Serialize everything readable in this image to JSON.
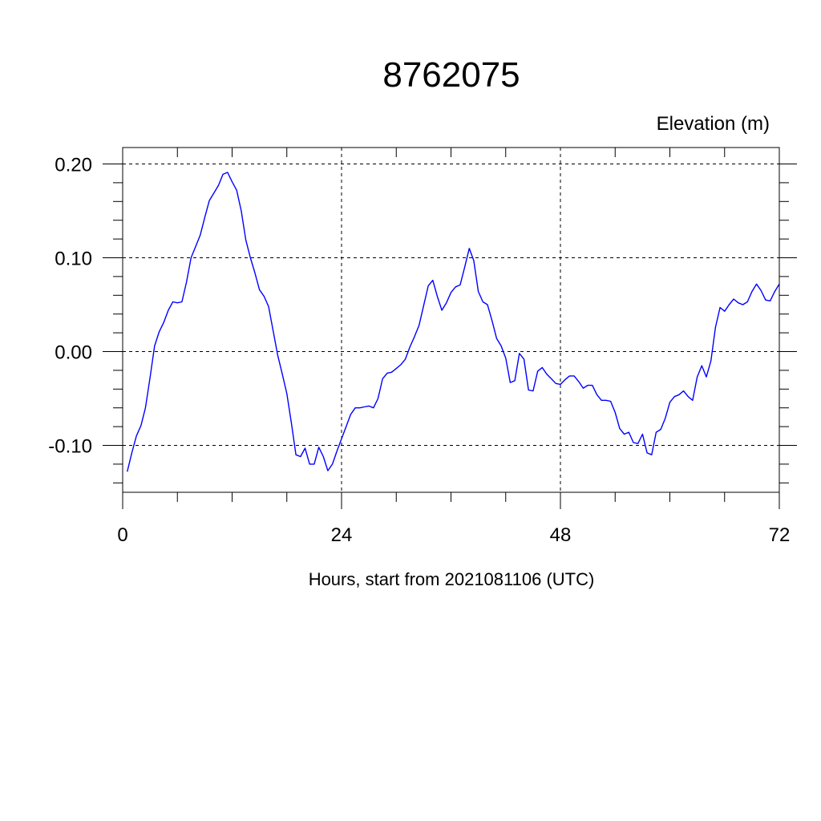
{
  "chart_data": {
    "type": "line",
    "title": "8762075",
    "ylabel": "Elevation (m)",
    "xlabel": "Hours, start from 2021081106 (UTC)",
    "xlim": [
      0,
      72
    ],
    "ylim": [
      -0.15,
      0.2
    ],
    "xticks": [
      0,
      24,
      48,
      72
    ],
    "xtick_labels": [
      "0",
      "24",
      "48",
      "72"
    ],
    "yticks": [
      -0.1,
      0.0,
      0.1,
      0.2
    ],
    "ytick_labels": [
      "-0.10",
      "0.00",
      "0.10",
      "0.20"
    ],
    "grid": true,
    "line_color": "#0000ff",
    "series": [
      {
        "x": [
          0.5,
          1.0,
          1.5,
          2.0,
          2.5,
          3.0,
          3.5,
          4.0,
          4.5,
          5.0,
          5.5,
          6.0,
          6.5,
          7.0,
          7.5,
          8.0,
          8.5,
          9.0,
          9.5,
          10.0,
          10.5,
          11.0,
          11.5,
          12.0,
          12.5,
          13.0,
          13.5,
          14.0,
          14.5,
          15.0,
          15.5,
          16.0,
          16.5,
          17.0,
          17.5,
          18.0,
          18.5,
          19.0,
          19.5,
          20.0,
          20.5,
          21.0,
          21.5,
          22.0,
          22.5,
          23.0,
          23.5,
          24.0,
          24.5,
          25.0,
          25.5,
          26.0,
          26.5,
          27.0,
          27.5,
          28.0,
          28.5,
          29.0,
          29.5,
          30.0,
          30.5,
          31.0,
          31.5,
          32.0,
          32.5,
          33.0,
          33.5,
          34.0,
          34.5,
          35.0,
          35.5,
          36.0,
          36.5,
          37.0,
          37.5,
          38.0,
          38.5,
          39.0,
          39.5,
          40.0,
          40.5,
          41.0,
          41.5,
          42.0,
          42.5,
          43.0,
          43.5,
          44.0,
          44.5,
          45.0,
          45.5,
          46.0,
          46.5,
          47.0,
          47.5,
          48.0,
          48.5,
          49.0,
          49.5,
          50.0,
          50.5,
          51.0,
          51.5,
          52.0,
          52.5,
          53.0,
          53.5,
          54.0,
          54.5,
          55.0,
          55.5,
          56.0,
          56.5,
          57.0,
          57.5,
          58.0,
          58.5,
          59.0,
          59.5,
          60.0,
          60.5,
          61.0,
          61.5,
          62.0,
          62.5,
          63.0,
          63.5,
          64.0,
          64.5,
          65.0,
          65.5,
          66.0,
          66.5,
          67.0,
          67.5,
          68.0,
          68.5,
          69.0,
          69.5,
          70.0,
          70.5,
          71.0,
          71.5,
          72.0
        ],
        "values": [
          -0.128,
          -0.108,
          -0.09,
          -0.079,
          -0.06,
          -0.028,
          0.006,
          0.021,
          0.031,
          0.044,
          0.053,
          0.052,
          0.053,
          0.074,
          0.1,
          0.112,
          0.124,
          0.143,
          0.161,
          0.169,
          0.177,
          0.189,
          0.191,
          0.181,
          0.172,
          0.15,
          0.119,
          0.1,
          0.084,
          0.066,
          0.059,
          0.048,
          0.022,
          -0.004,
          -0.024,
          -0.045,
          -0.076,
          -0.11,
          -0.112,
          -0.103,
          -0.12,
          -0.12,
          -0.102,
          -0.112,
          -0.127,
          -0.12,
          -0.106,
          -0.093,
          -0.08,
          -0.067,
          -0.06,
          -0.06,
          -0.059,
          -0.058,
          -0.06,
          -0.05,
          -0.029,
          -0.023,
          -0.022,
          -0.018,
          -0.014,
          -0.008,
          0.005,
          0.016,
          0.028,
          0.049,
          0.07,
          0.076,
          0.059,
          0.044,
          0.052,
          0.063,
          0.069,
          0.071,
          0.09,
          0.11,
          0.097,
          0.064,
          0.053,
          0.05,
          0.033,
          0.014,
          0.006,
          -0.007,
          -0.033,
          -0.031,
          -0.002,
          -0.008,
          -0.041,
          -0.042,
          -0.021,
          -0.017,
          -0.024,
          -0.029,
          -0.034,
          -0.035,
          -0.03,
          -0.026,
          -0.026,
          -0.032,
          -0.039,
          -0.036,
          -0.036,
          -0.046,
          -0.052,
          -0.052,
          -0.053,
          -0.065,
          -0.082,
          -0.088,
          -0.086,
          -0.097,
          -0.098,
          -0.088,
          -0.108,
          -0.11,
          -0.086,
          -0.083,
          -0.071,
          -0.054,
          -0.048,
          -0.046,
          -0.042,
          -0.048,
          -0.052,
          -0.027,
          -0.015,
          -0.027,
          -0.01,
          0.026,
          0.047,
          0.043,
          0.05,
          0.056,
          0.052,
          0.05,
          0.053,
          0.064,
          0.072,
          0.065,
          0.055,
          0.054,
          0.064,
          0.072
        ]
      }
    ]
  }
}
